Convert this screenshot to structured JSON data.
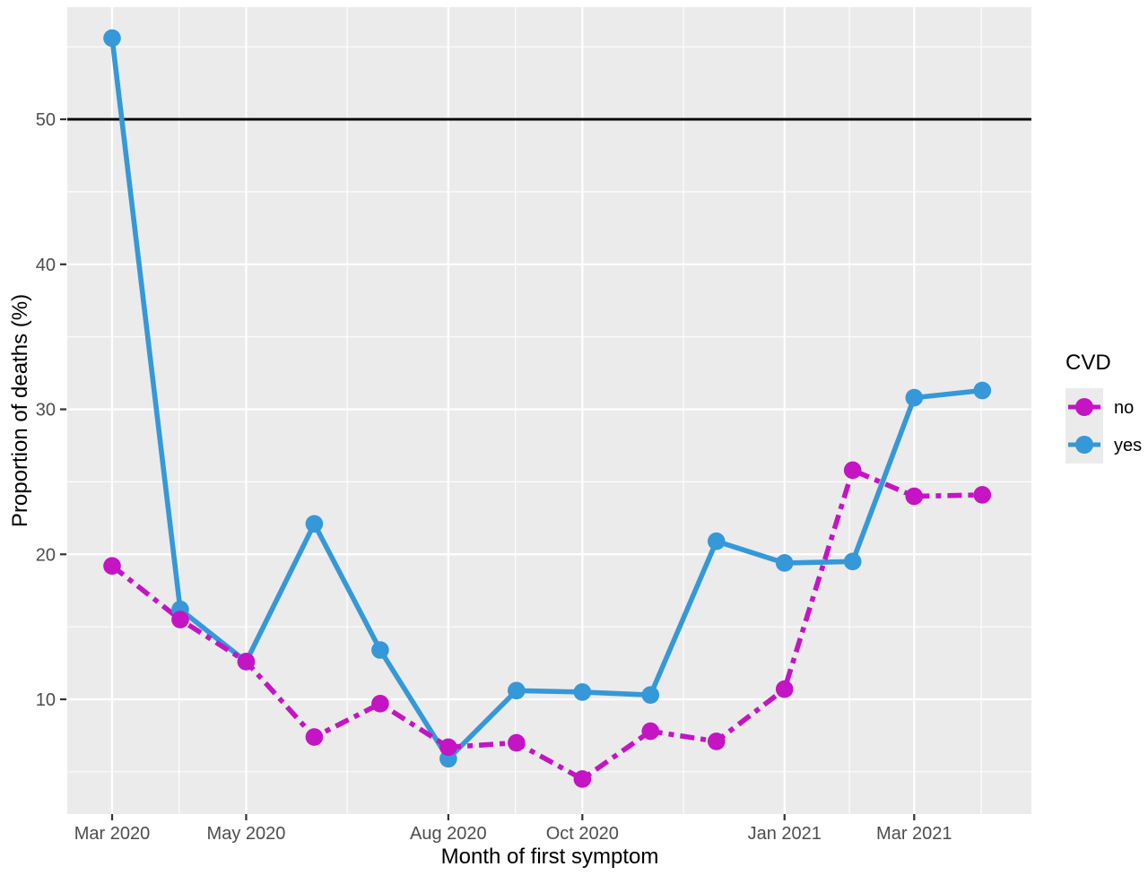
{
  "axes": {
    "x_title": "Month of first symptom",
    "y_title": "Proportion of deaths (%)",
    "x_tick_labels": [
      "Mar 2020",
      "May 2020",
      "Aug 2020",
      "Oct 2020",
      "Jan 2021",
      "Mar 2021"
    ],
    "y_tick_labels": [
      "10",
      "20",
      "30",
      "40",
      "50"
    ]
  },
  "legend": {
    "title": "CVD",
    "items": [
      {
        "label": "no",
        "color": "#c414c4",
        "linetype": "twodash"
      },
      {
        "label": "yes",
        "color": "#3598d8",
        "linetype": "solid"
      }
    ]
  },
  "colors": {
    "panel_background": "#ebebeb",
    "grid_line": "#ffffff",
    "tick_mark": "#333333",
    "tick_label": "#4d4d4d",
    "axis_title": "#000000",
    "reference_line": "#000000",
    "no": "#c414c4",
    "yes": "#3598d8"
  },
  "chart_data": {
    "type": "line",
    "title": "",
    "xlabel": "Month of first symptom",
    "ylabel": "Proportion of deaths (%)",
    "categories": [
      "Mar 2020",
      "Apr 2020",
      "May 2020",
      "Jun 2020",
      "Jul 2020",
      "Aug 2020",
      "Sep 2020",
      "Oct 2020",
      "Nov 2020",
      "Dec 2020",
      "Jan 2021",
      "Feb 2021",
      "Mar 2021",
      "Apr 2021"
    ],
    "series": [
      {
        "name": "no",
        "color": "#c414c4",
        "dashed": true,
        "values": [
          19.2,
          15.5,
          12.6,
          7.4,
          9.7,
          6.7,
          7.0,
          4.5,
          7.8,
          7.1,
          10.7,
          25.8,
          24.0,
          24.1
        ]
      },
      {
        "name": "yes",
        "color": "#3598d8",
        "dashed": false,
        "values": [
          55.6,
          16.2,
          12.6,
          22.1,
          13.4,
          5.9,
          10.6,
          10.5,
          10.3,
          20.9,
          19.4,
          19.5,
          30.8,
          31.3
        ]
      }
    ],
    "x_major_ticks": [
      "Mar 2020",
      "May 2020",
      "Aug 2020",
      "Oct 2020",
      "Jan 2021",
      "Mar 2021"
    ],
    "y_major_ticks": [
      10,
      20,
      30,
      40,
      50
    ],
    "y_minor_ticks": [
      5,
      15,
      25,
      35,
      45,
      55
    ],
    "ylim": [
      2.1,
      57.7
    ],
    "reference_line_y": 50,
    "legend_position": "right",
    "grid": "white major and minor gridlines on gray panel"
  }
}
